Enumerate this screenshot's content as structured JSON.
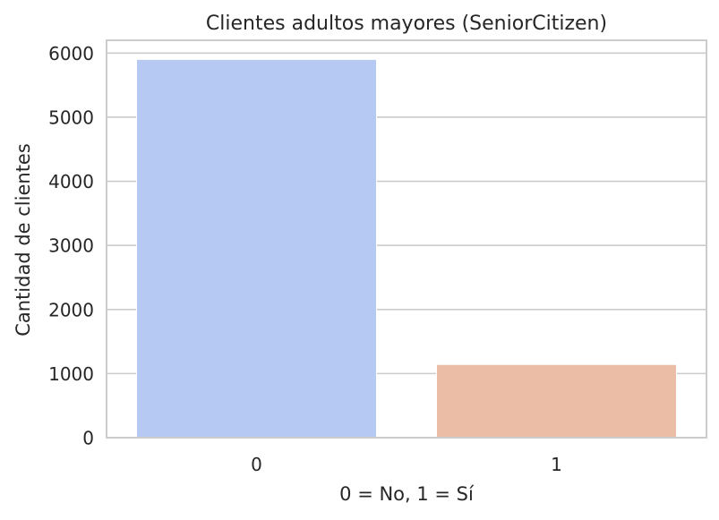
{
  "chart_data": {
    "type": "bar",
    "title": "Clientes adultos mayores (SeniorCitizen)",
    "xlabel": "0 = No, 1 = Sí",
    "ylabel": "Cantidad de clientes",
    "categories": [
      "0",
      "1"
    ],
    "values": [
      5901,
      1142
    ],
    "colors": [
      "#b5c9f3",
      "#ecbda6"
    ],
    "ylim": [
      0,
      6200
    ],
    "yticks": [
      0,
      1000,
      2000,
      3000,
      4000,
      5000,
      6000
    ],
    "grid": "horizontal",
    "legend": "none"
  }
}
